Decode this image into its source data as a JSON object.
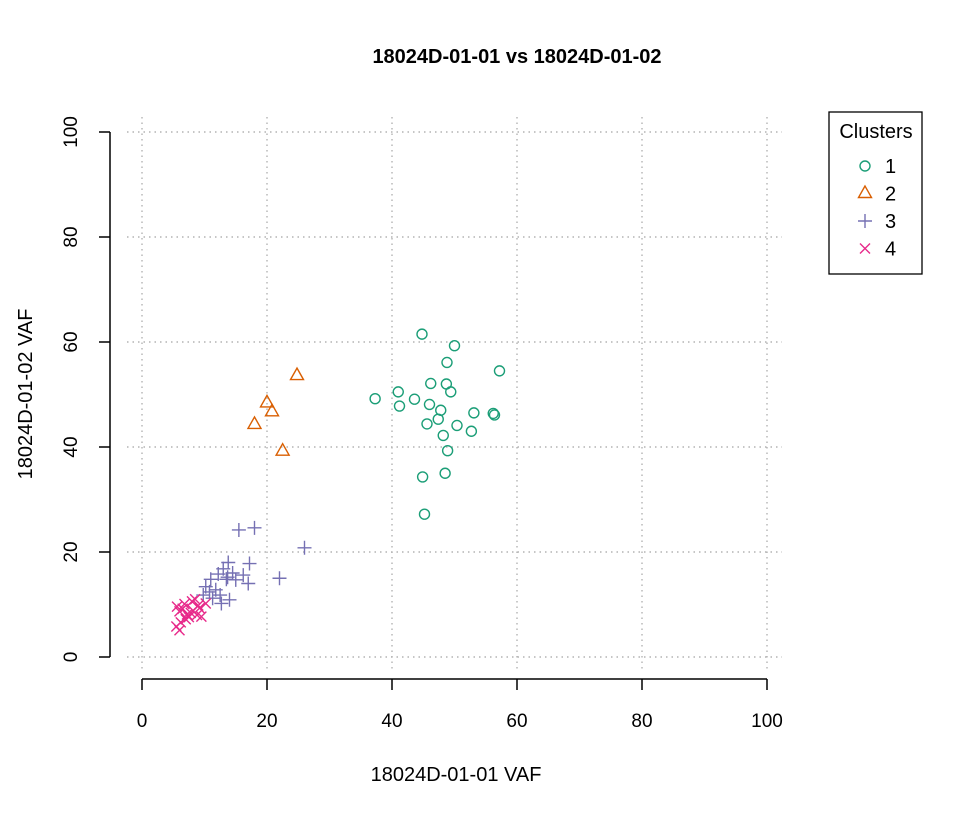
{
  "chart_data": {
    "type": "scatter",
    "title": "18024D-01-01 vs 18024D-01-02",
    "xlabel": "18024D-01-01 VAF",
    "ylabel": "18024D-01-02 VAF",
    "xlim": [
      0,
      100
    ],
    "ylim": [
      0,
      100
    ],
    "xticks": [
      "0",
      "20",
      "40",
      "60",
      "80",
      "100"
    ],
    "yticks": [
      "0",
      "20",
      "40",
      "60",
      "80",
      "100"
    ],
    "grid": true,
    "legend": {
      "title": "Clusters",
      "position": "top-right (outside plot)"
    },
    "series": [
      {
        "name": "1",
        "marker": "circle",
        "color": "#1b9e77",
        "x": [
          44.8,
          50.0,
          57.2,
          48.8,
          46.2,
          48.7,
          41.0,
          37.3,
          43.6,
          41.2,
          49.4,
          46.0,
          47.8,
          56.2,
          56.4,
          53.1,
          47.4,
          45.6,
          50.4,
          52.7,
          48.2,
          48.9,
          48.5,
          44.9,
          45.2
        ],
        "y": [
          61.5,
          59.3,
          54.5,
          56.1,
          52.1,
          52.0,
          50.5,
          49.2,
          49.1,
          47.8,
          50.5,
          48.1,
          47.0,
          46.4,
          46.1,
          46.5,
          45.3,
          44.4,
          44.1,
          43.0,
          42.2,
          39.3,
          35.0,
          34.3,
          27.2
        ]
      },
      {
        "name": "2",
        "marker": "triangle",
        "color": "#d95f02",
        "x": [
          24.8,
          20.0,
          20.8,
          18.0,
          22.5
        ],
        "y": [
          53.6,
          48.4,
          46.7,
          44.3,
          39.2
        ]
      },
      {
        "name": "3",
        "marker": "plus",
        "color": "#7570b3",
        "x": [
          15.5,
          18.0,
          26.0,
          22.0,
          13.8,
          17.2,
          14.5,
          12.2,
          16.2,
          11.0,
          13.5,
          10.2,
          15.0,
          11.8,
          12.5,
          17.0,
          13.0,
          10.8,
          9.8,
          14.0,
          12.7,
          11.3,
          13.7
        ],
        "y": [
          24.2,
          24.6,
          20.8,
          15.0,
          18.0,
          17.8,
          16.0,
          15.8,
          15.6,
          14.8,
          14.8,
          13.4,
          14.7,
          12.8,
          11.8,
          14.0,
          16.8,
          12.4,
          11.8,
          10.9,
          10.2,
          11.2,
          15.2
        ]
      },
      {
        "name": "4",
        "marker": "x",
        "color": "#e7298a",
        "x": [
          5.6,
          6.8,
          6.0,
          7.2,
          8.0,
          6.5,
          7.5,
          9.2,
          8.5,
          7.0,
          8.8,
          9.5,
          6.2,
          5.5,
          10.2,
          7.8,
          8.2,
          6.0,
          9.0
        ],
        "y": [
          9.6,
          10.1,
          8.7,
          8.1,
          10.6,
          9.2,
          7.6,
          9.3,
          11.0,
          7.2,
          8.0,
          7.7,
          6.6,
          5.8,
          10.2,
          8.4,
          8.8,
          5.1,
          9.8
        ]
      }
    ]
  }
}
